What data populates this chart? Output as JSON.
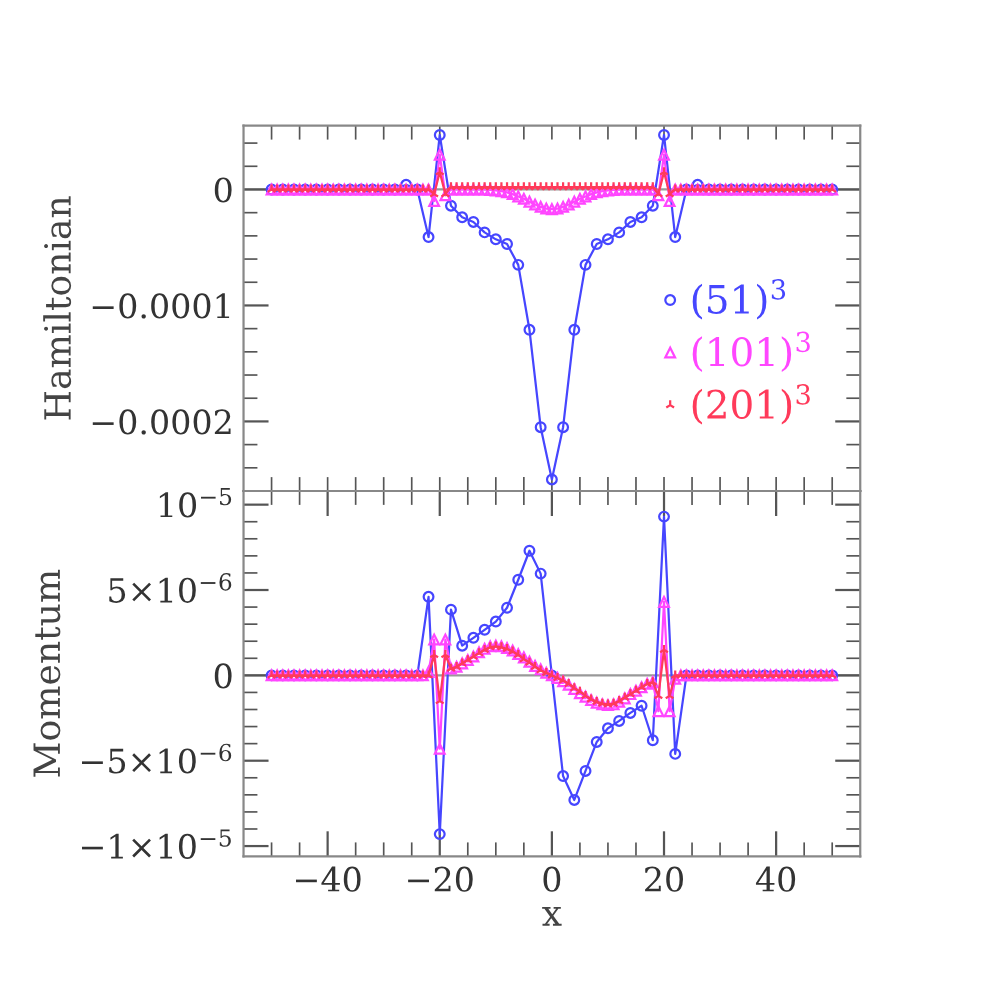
{
  "chart_data": [
    {
      "type": "line",
      "ylabel": "Hamiltonian",
      "tick_labels": "y",
      "legend": "bottom right",
      "xlim": [
        -55,
        55
      ],
      "ylim": [
        -0.00026,
        5.5e-05
      ],
      "xticks": [
        {
          "value": -50,
          "label": null
        },
        {
          "value": -45,
          "label": null
        },
        {
          "value": -40,
          "label": null
        },
        {
          "value": -35,
          "label": null
        },
        {
          "value": -30,
          "label": null
        },
        {
          "value": -25,
          "label": null
        },
        {
          "value": -20,
          "label": null
        },
        {
          "value": -15,
          "label": null
        },
        {
          "value": -10,
          "label": null
        },
        {
          "value": -5,
          "label": null
        },
        {
          "value": 0,
          "label": null
        },
        {
          "value": 5,
          "label": null
        },
        {
          "value": 10,
          "label": null
        },
        {
          "value": 15,
          "label": null
        },
        {
          "value": 20,
          "label": null
        },
        {
          "value": 25,
          "label": null
        },
        {
          "value": 30,
          "label": null
        },
        {
          "value": 35,
          "label": null
        },
        {
          "value": 40,
          "label": null
        },
        {
          "value": 45,
          "label": null
        },
        {
          "value": 50,
          "label": null
        }
      ],
      "yticks": [
        {
          "value": -0.00024,
          "label": null
        },
        {
          "value": -0.00022,
          "label": null
        },
        {
          "value": -0.0002,
          "label": "−0.0002"
        },
        {
          "value": -0.00018,
          "label": null
        },
        {
          "value": -0.00016,
          "label": null
        },
        {
          "value": -0.00014,
          "label": null
        },
        {
          "value": -0.00012,
          "label": null
        },
        {
          "value": -0.0001,
          "label": "−0.0001"
        },
        {
          "value": -8e-05,
          "label": null
        },
        {
          "value": -6e-05,
          "label": null
        },
        {
          "value": -4e-05,
          "label": null
        },
        {
          "value": -2e-05,
          "label": null
        },
        0,
        {
          "value": 2e-05,
          "label": null
        },
        {
          "value": 4e-05,
          "label": null
        }
      ],
      "series": [
        {
          "name": "(51)$^{3}$",
          "color": "#4646ff",
          "marker": "circle",
          "x": [
            -50,
            -48,
            -46,
            -44,
            -42,
            -40,
            -38,
            -36,
            -34,
            -32,
            -30,
            -28,
            -26,
            -24,
            -22,
            -20,
            -18,
            -16,
            -14,
            -12,
            -10,
            -8,
            -6,
            -4,
            -2,
            0,
            2,
            4,
            6,
            8,
            10,
            12,
            14,
            16,
            18,
            20,
            22,
            24,
            26,
            28,
            30,
            32,
            34,
            36,
            38,
            40,
            42,
            44,
            46,
            48,
            50
          ],
          "values": [
            0,
            0,
            0,
            0,
            0,
            0,
            0,
            0,
            0,
            0,
            0,
            0,
            4e-06,
            0,
            -4.1e-05,
            4.7e-05,
            -1.4e-05,
            -2.4e-05,
            -2.8e-05,
            -3.7e-05,
            -4.3e-05,
            -4.7e-05,
            -6.5e-05,
            -0.000121,
            -0.000205,
            -0.00025,
            -0.000205,
            -0.000121,
            -6.5e-05,
            -4.7e-05,
            -4.3e-05,
            -3.7e-05,
            -2.8e-05,
            -2.4e-05,
            -1.4e-05,
            4.7e-05,
            -4.1e-05,
            0,
            4e-06,
            0,
            0,
            0,
            0,
            0,
            0,
            0,
            0,
            0,
            0,
            0,
            0
          ]
        },
        {
          "name": "(101)$^{3}$",
          "color": "#ff46ff",
          "marker": "triangle",
          "x": [
            -50,
            -49,
            -48,
            -47,
            -46,
            -45,
            -44,
            -43,
            -42,
            -41,
            -40,
            -39,
            -38,
            -37,
            -36,
            -35,
            -34,
            -33,
            -32,
            -31,
            -30,
            -29,
            -28,
            -27,
            -26,
            -25,
            -24,
            -23,
            -22,
            -21,
            -20,
            -19,
            -18,
            -17,
            -16,
            -15,
            -14,
            -13,
            -12,
            -11,
            -10,
            -9,
            -8,
            -7,
            -6,
            -5,
            -4,
            -3,
            -2,
            -1,
            0,
            1,
            2,
            3,
            4,
            5,
            6,
            7,
            8,
            9,
            10,
            11,
            12,
            13,
            14,
            15,
            16,
            17,
            18,
            19,
            20,
            21,
            22,
            23,
            24,
            25,
            26,
            27,
            28,
            29,
            30,
            31,
            32,
            33,
            34,
            35,
            36,
            37,
            38,
            39,
            40,
            41,
            42,
            43,
            44,
            45,
            46,
            47,
            48,
            49,
            50
          ],
          "values": [
            0,
            0,
            0,
            0,
            0,
            0,
            0,
            0,
            0,
            0,
            0,
            0,
            0,
            0,
            0,
            0,
            0,
            0,
            0,
            0,
            0,
            0,
            0,
            0,
            0,
            0,
            0,
            0,
            0,
            -1e-05,
            3e-05,
            -5e-06,
            0,
            0,
            0,
            0,
            0,
            0,
            0,
            -4e-07,
            -8e-07,
            -1.5e-06,
            -2.5e-06,
            -4e-06,
            -6e-06,
            -8e-06,
            -1.05e-05,
            -1.3e-05,
            -1.5e-05,
            -1.65e-05,
            -1.7e-05,
            -1.65e-05,
            -1.5e-05,
            -1.3e-05,
            -1.05e-05,
            -8e-06,
            -6e-06,
            -4e-06,
            -2.5e-06,
            -1.5e-06,
            -8e-07,
            -4e-07,
            0,
            0,
            0,
            0,
            0,
            0,
            0,
            -5e-06,
            3e-05,
            -1e-05,
            0,
            0,
            0,
            0,
            0,
            0,
            0,
            0,
            0,
            0,
            0,
            0,
            0,
            0,
            0,
            0,
            0,
            0,
            0,
            0,
            0,
            0,
            0,
            0,
            0,
            0,
            0,
            0,
            0
          ]
        },
        {
          "name": "(201)$^{3}$",
          "color": "#ff3a5a",
          "marker": "cross",
          "x": [
            -50,
            -49,
            -48,
            -47,
            -46,
            -45,
            -44,
            -43,
            -42,
            -41,
            -40,
            -39,
            -38,
            -37,
            -36,
            -35,
            -34,
            -33,
            -32,
            -31,
            -30,
            -29,
            -28,
            -27,
            -26,
            -25,
            -24,
            -23,
            -22,
            -21,
            -20,
            -19,
            -18,
            -17,
            -16,
            -15,
            -14,
            -13,
            -12,
            -11,
            -10,
            -9,
            -8,
            -7,
            -6,
            -5,
            -4,
            -3,
            -2,
            -1,
            0,
            1,
            2,
            3,
            4,
            5,
            6,
            7,
            8,
            9,
            10,
            11,
            12,
            13,
            14,
            15,
            16,
            17,
            18,
            19,
            20,
            21,
            22,
            23,
            24,
            25,
            26,
            27,
            28,
            29,
            30,
            31,
            32,
            33,
            34,
            35,
            36,
            37,
            38,
            39,
            40,
            41,
            42,
            43,
            44,
            45,
            46,
            47,
            48,
            49,
            50
          ],
          "values": [
            0,
            0,
            0,
            0,
            0,
            0,
            0,
            0,
            0,
            0,
            0,
            0,
            0,
            0,
            0,
            0,
            0,
            0,
            0,
            0,
            0,
            0,
            0,
            0,
            0,
            0,
            0,
            0,
            0,
            -4e-06,
            1.5e-05,
            -4e-06,
            2e-06,
            2e-06,
            2e-06,
            2e-06,
            2e-06,
            2e-06,
            2e-06,
            2e-06,
            2e-06,
            2e-06,
            2e-06,
            2e-06,
            2e-06,
            2e-06,
            2e-06,
            2e-06,
            2e-06,
            2e-06,
            2e-06,
            2e-06,
            2e-06,
            2e-06,
            2e-06,
            2e-06,
            2e-06,
            2e-06,
            2e-06,
            2e-06,
            2e-06,
            2e-06,
            2e-06,
            2e-06,
            2e-06,
            2e-06,
            2e-06,
            2e-06,
            2e-06,
            -4e-06,
            1.5e-05,
            -4e-06,
            0,
            0,
            0,
            0,
            0,
            0,
            0,
            0,
            0,
            0,
            0,
            0,
            0,
            0,
            0,
            0,
            0,
            0,
            0,
            0,
            0,
            0,
            0,
            0,
            0,
            0,
            0,
            0,
            0
          ]
        }
      ]
    },
    {
      "type": "line",
      "xlabel": "x",
      "ylabel": "Momentum",
      "xlim": [
        -55,
        55
      ],
      "ylim": [
        -1.06e-05,
        1.08e-05
      ],
      "xticks": [
        {
          "value": -50,
          "label": null
        },
        {
          "value": -45,
          "label": null
        },
        {
          "value": -40,
          "label": "−40"
        },
        {
          "value": -35,
          "label": null
        },
        {
          "value": -30,
          "label": null
        },
        {
          "value": -25,
          "label": null
        },
        {
          "value": -20,
          "label": "−20"
        },
        {
          "value": -15,
          "label": null
        },
        {
          "value": -10,
          "label": null
        },
        {
          "value": -5,
          "label": null
        },
        0,
        {
          "value": 5,
          "label": null
        },
        {
          "value": 10,
          "label": null
        },
        {
          "value": 15,
          "label": null
        },
        20,
        {
          "value": 25,
          "label": null
        },
        {
          "value": 30,
          "label": null
        },
        {
          "value": 35,
          "label": null
        },
        40,
        {
          "value": 45,
          "label": null
        },
        {
          "value": 50,
          "label": null
        }
      ],
      "yticks": [
        {
          "value": -1e-05,
          "label": "−1×10$^{−5}$"
        },
        {
          "value": -9e-06,
          "label": null
        },
        {
          "value": -8e-06,
          "label": null
        },
        {
          "value": -7e-06,
          "label": null
        },
        {
          "value": -6e-06,
          "label": null
        },
        {
          "value": -5e-06,
          "label": "−5×10$^{−6}$"
        },
        {
          "value": -4e-06,
          "label": null
        },
        {
          "value": -3e-06,
          "label": null
        },
        {
          "value": -2e-06,
          "label": null
        },
        {
          "value": -1e-06,
          "label": null
        },
        0,
        {
          "value": 1e-06,
          "label": null
        },
        {
          "value": 2e-06,
          "label": null
        },
        {
          "value": 3e-06,
          "label": null
        },
        {
          "value": 4e-06,
          "label": null
        },
        {
          "value": 5e-06,
          "label": "5×10$^{−6}$"
        },
        {
          "value": 6e-06,
          "label": null
        },
        {
          "value": 7e-06,
          "label": null
        },
        {
          "value": 8e-06,
          "label": null
        },
        {
          "value": 9e-06,
          "label": null
        },
        {
          "value": 1e-05,
          "label": "10$^{−5}$"
        }
      ],
      "series": [
        {
          "color": "#4646ff",
          "marker": "circle",
          "x": [
            -50,
            -48,
            -46,
            -44,
            -42,
            -40,
            -38,
            -36,
            -34,
            -32,
            -30,
            -28,
            -26,
            -24,
            -22,
            -20,
            -18,
            -16,
            -14,
            -12,
            -10,
            -8,
            -6,
            -4,
            -2,
            0,
            2,
            4,
            6,
            8,
            10,
            12,
            14,
            16,
            18,
            20,
            22,
            24,
            26,
            28,
            30,
            32,
            34,
            36,
            38,
            40,
            42,
            44,
            46,
            48,
            50
          ],
          "values": [
            0,
            0,
            0,
            0,
            0,
            0,
            0,
            0,
            0,
            0,
            0,
            0,
            0,
            0,
            4.6e-06,
            -9.3e-06,
            3.85e-06,
            1.74e-06,
            2.2e-06,
            2.67e-06,
            3.15e-06,
            3.96e-06,
            5.6e-06,
            7.3e-06,
            5.96e-06,
            0,
            -5.9e-06,
            -7.3e-06,
            -5.6e-06,
            -3.9e-06,
            -3.1e-06,
            -2.67e-06,
            -2.2e-06,
            -1.78e-06,
            -3.8e-06,
            9.3e-06,
            -4.6e-06,
            0,
            0,
            0,
            0,
            0,
            0,
            0,
            0,
            0,
            0,
            0,
            0,
            0,
            0
          ]
        },
        {
          "color": "#ff46ff",
          "marker": "triangle",
          "x": [
            -50,
            -49,
            -48,
            -47,
            -46,
            -45,
            -44,
            -43,
            -42,
            -41,
            -40,
            -39,
            -38,
            -37,
            -36,
            -35,
            -34,
            -33,
            -32,
            -31,
            -30,
            -29,
            -28,
            -27,
            -26,
            -25,
            -24,
            -23,
            -22,
            -21,
            -20,
            -19,
            -18,
            -17,
            -16,
            -15,
            -14,
            -13,
            -12,
            -11,
            -10,
            -9,
            -8,
            -7,
            -6,
            -5,
            -4,
            -3,
            -2,
            -1,
            0,
            1,
            2,
            3,
            4,
            5,
            6,
            7,
            8,
            9,
            10,
            11,
            12,
            13,
            14,
            15,
            16,
            17,
            18,
            19,
            20,
            21,
            22,
            23,
            24,
            25,
            26,
            27,
            28,
            29,
            30,
            31,
            32,
            33,
            34,
            35,
            36,
            37,
            38,
            39,
            40,
            41,
            42,
            43,
            44,
            45,
            46,
            47,
            48,
            49,
            50
          ],
          "values": [
            0,
            0,
            0,
            0,
            0,
            0,
            0,
            0,
            0,
            0,
            0,
            0,
            0,
            0,
            0,
            0,
            0,
            0,
            0,
            0,
            0,
            0,
            0,
            0,
            0,
            0,
            0,
            0,
            2e-07,
            2.1e-06,
            -4.3e-06,
            2.1e-06,
            4e-07,
            5e-07,
            7e-07,
            9e-07,
            1.1e-06,
            1.35e-06,
            1.55e-06,
            1.7e-06,
            1.74e-06,
            1.7e-06,
            1.6e-06,
            1.45e-06,
            1.25e-06,
            1.05e-06,
            8e-07,
            5.5e-07,
            3.5e-07,
            1.5e-07,
            0,
            -1.5e-07,
            -3.5e-07,
            -5.5e-07,
            -8e-07,
            -1.05e-06,
            -1.25e-06,
            -1.45e-06,
            -1.6e-06,
            -1.7e-06,
            -1.74e-06,
            -1.7e-06,
            -1.55e-06,
            -1.35e-06,
            -1.1e-06,
            -9e-07,
            -7e-07,
            -5e-07,
            -4e-07,
            -2.1e-06,
            4.3e-06,
            -2.1e-06,
            -2e-07,
            0,
            0,
            0,
            0,
            0,
            0,
            0,
            0,
            0,
            0,
            0,
            0,
            0,
            0,
            0,
            0,
            0,
            0,
            0,
            0,
            0,
            0,
            0,
            0,
            0,
            0,
            0,
            0
          ]
        },
        {
          "color": "#ff3a5a",
          "marker": "cross",
          "x": [
            -50,
            -49,
            -48,
            -47,
            -46,
            -45,
            -44,
            -43,
            -42,
            -41,
            -40,
            -39,
            -38,
            -37,
            -36,
            -35,
            -34,
            -33,
            -32,
            -31,
            -30,
            -29,
            -28,
            -27,
            -26,
            -25,
            -24,
            -23,
            -22,
            -21,
            -20,
            -19,
            -18,
            -17,
            -16,
            -15,
            -14,
            -13,
            -12,
            -11,
            -10,
            -9,
            -8,
            -7,
            -6,
            -5,
            -4,
            -3,
            -2,
            -1,
            0,
            1,
            2,
            3,
            4,
            5,
            6,
            7,
            8,
            9,
            10,
            11,
            12,
            13,
            14,
            15,
            16,
            17,
            18,
            19,
            20,
            21,
            22,
            23,
            24,
            25,
            26,
            27,
            28,
            29,
            30,
            31,
            32,
            33,
            34,
            35,
            36,
            37,
            38,
            39,
            40,
            41,
            42,
            43,
            44,
            45,
            46,
            47,
            48,
            49,
            50
          ],
          "values": [
            0,
            0,
            0,
            0,
            0,
            0,
            0,
            0,
            0,
            0,
            0,
            0,
            0,
            0,
            0,
            0,
            0,
            0,
            0,
            0,
            0,
            0,
            0,
            0,
            0,
            0,
            0,
            0,
            0,
            1.2e-06,
            -1.5e-06,
            1.2e-06,
            4e-07,
            5e-07,
            7e-07,
            9e-07,
            1.1e-06,
            1.3e-06,
            1.5e-06,
            1.65e-06,
            1.7e-06,
            1.65e-06,
            1.55e-06,
            1.4e-06,
            1.2e-06,
            9.5e-07,
            7.5e-07,
            5e-07,
            3e-07,
            1.5e-07,
            0,
            -1.5e-07,
            -3e-07,
            -5e-07,
            -7.5e-07,
            -9.5e-07,
            -1.2e-06,
            -1.4e-06,
            -1.55e-06,
            -1.65e-06,
            -1.7e-06,
            -1.65e-06,
            -1.5e-06,
            -1.3e-06,
            -1.1e-06,
            -9e-07,
            -7e-07,
            -5e-07,
            -4e-07,
            -1.2e-06,
            1.5e-06,
            -1.2e-06,
            0,
            0,
            0,
            0,
            0,
            0,
            0,
            0,
            0,
            0,
            0,
            0,
            0,
            0,
            0,
            0,
            0,
            0,
            0,
            0,
            0,
            0,
            0,
            0,
            0,
            0,
            0,
            0,
            0
          ]
        }
      ]
    }
  ]
}
